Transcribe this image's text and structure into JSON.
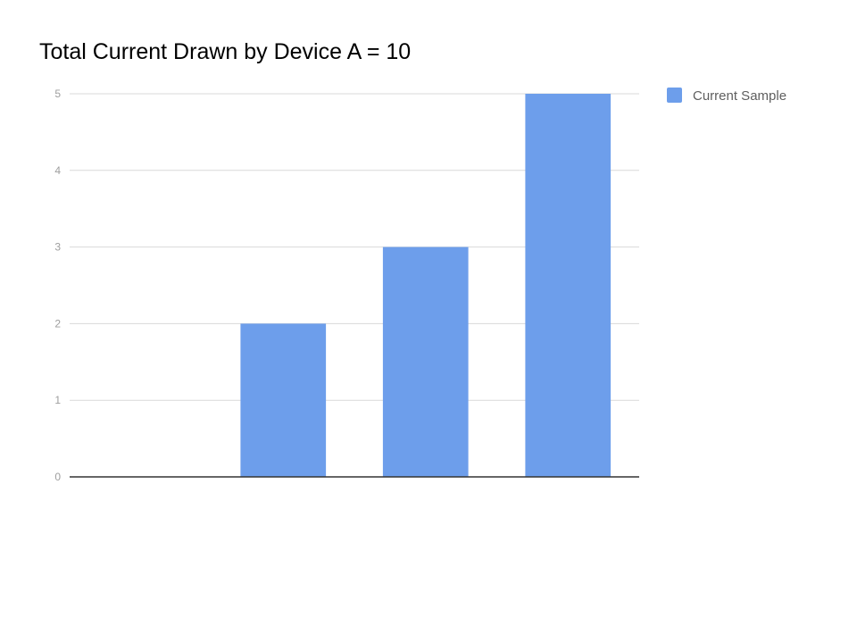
{
  "chart_data": {
    "type": "bar",
    "title": "Total Current Drawn by Device A = 10",
    "xlabel": "",
    "ylabel": "",
    "categories": [
      "",
      "",
      "",
      ""
    ],
    "series": [
      {
        "name": "Current Sample",
        "values": [
          0,
          2,
          3,
          5
        ],
        "color": "#6d9eeb"
      }
    ],
    "ylim": [
      0,
      5
    ],
    "yticks": [
      "0",
      "1",
      "2",
      "3",
      "4",
      "5"
    ],
    "grid": true,
    "legend": "right"
  }
}
